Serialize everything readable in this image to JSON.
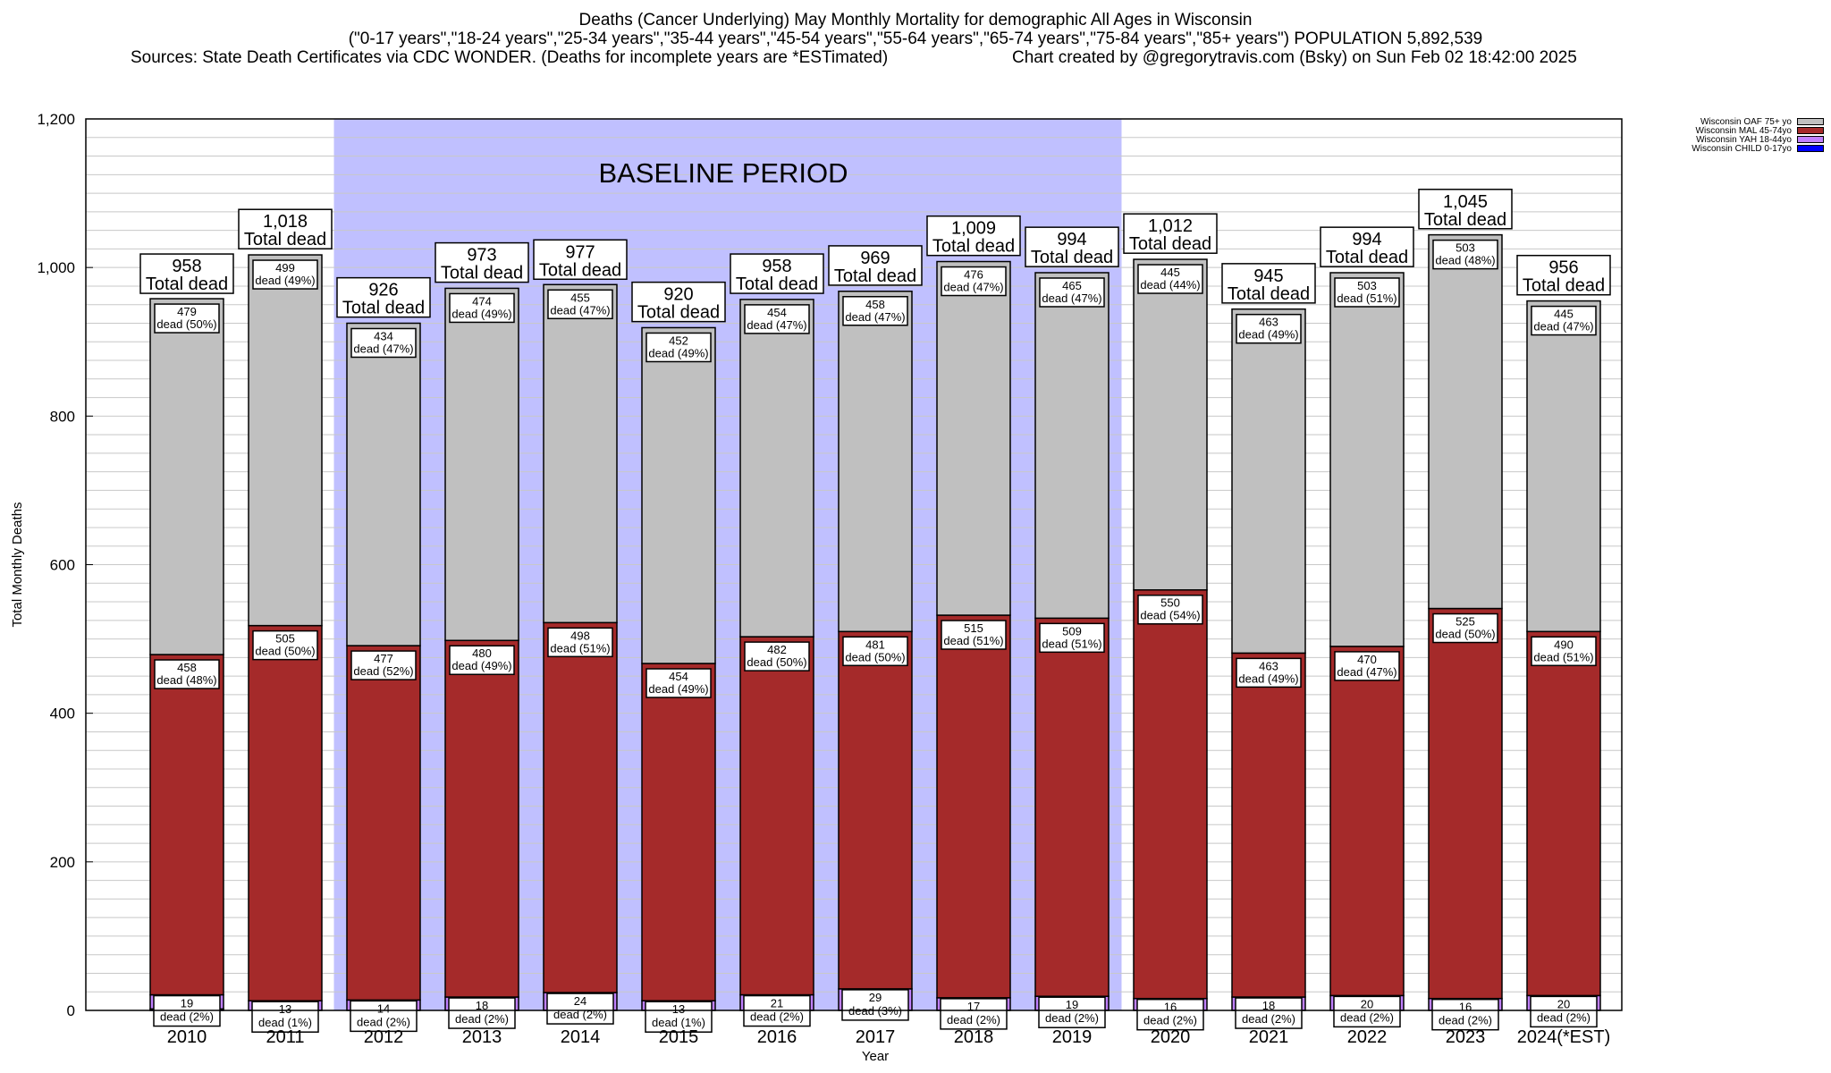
{
  "header": {
    "title": "Deaths (Cancer Underlying) May Monthly Mortality for demographic All Ages in Wisconsin",
    "subtitle": "(\"0-17 years\",\"18-24 years\",\"25-34 years\",\"35-44 years\",\"45-54 years\",\"55-64 years\",\"65-74 years\",\"75-84 years\",\"85+ years\") POPULATION 5,892,539",
    "sources": "Sources: State Death Certificates via CDC WONDER. (Deaths for incomplete years are *ESTimated)",
    "credit": "Chart created by @gregorytravis.com (Bsky) on Sun Feb 02 18:42:00 2025"
  },
  "legend": [
    {
      "label": "Wisconsin OAF 75+ yo",
      "color": "#c0c0c0"
    },
    {
      "label": "Wisconsin MAL 45-74yo",
      "color": "#a52a2a"
    },
    {
      "label": "Wisconsin YAH 18-44yo",
      "color": "#c080ff"
    },
    {
      "label": "Wisconsin CHILD 0-17yo",
      "color": "#0000ff"
    }
  ],
  "chart_data": {
    "type": "bar",
    "stacked": true,
    "title": "Deaths (Cancer Underlying) May Monthly Mortality for demographic All Ages in Wisconsin",
    "xlabel": "Year",
    "ylabel": "Total Monthly Deaths",
    "ylim": [
      0,
      1200
    ],
    "yticks": [
      0,
      200,
      400,
      600,
      800,
      1000,
      1200
    ],
    "ytick_labels": [
      "0",
      "200",
      "400",
      "600",
      "800",
      "1,000",
      "1,200"
    ],
    "grid": true,
    "legend_position": "top-right",
    "annotation": {
      "label": "BASELINE PERIOD",
      "from": "2012",
      "to": "2019",
      "color": "#c0c0ff"
    },
    "total_suffix": "Total dead",
    "categories": [
      "2010",
      "2011",
      "2012",
      "2013",
      "2014",
      "2015",
      "2016",
      "2017",
      "2018",
      "2019",
      "2020",
      "2021",
      "2022",
      "2023",
      "2024(*EST)"
    ],
    "totals": [
      958,
      1018,
      926,
      973,
      977,
      920,
      958,
      969,
      1009,
      994,
      1012,
      945,
      994,
      1045,
      956
    ],
    "total_labels": [
      "958",
      "1,018",
      "926",
      "973",
      "977",
      "920",
      "958",
      "969",
      "1,009",
      "994",
      "1,012",
      "945",
      "994",
      "1,045",
      "956"
    ],
    "series": [
      {
        "name": "Wisconsin CHILD 0-17yo",
        "color": "#0000ff",
        "values": [
          2,
          0,
          0,
          0,
          0,
          0,
          0,
          0,
          0,
          0,
          0,
          0,
          0,
          0,
          0
        ]
      },
      {
        "name": "Wisconsin YAH 18-44yo",
        "color": "#c080ff",
        "values": [
          19,
          13,
          14,
          18,
          24,
          13,
          21,
          29,
          17,
          19,
          16,
          18,
          20,
          16,
          20
        ],
        "labels": [
          "dead (2%)",
          "dead (1%)",
          "dead (2%)",
          "dead (2%)",
          "dead (2%)",
          "dead (1%)",
          "dead (2%)",
          "dead (3%)",
          "dead (2%)",
          "dead (2%)",
          "dead (2%)",
          "dead (2%)",
          "dead (2%)",
          "dead (2%)",
          "dead (2%)"
        ]
      },
      {
        "name": "Wisconsin MAL 45-74yo",
        "color": "#a52a2a",
        "values": [
          458,
          505,
          477,
          480,
          498,
          454,
          482,
          481,
          515,
          509,
          550,
          463,
          470,
          525,
          490
        ],
        "labels": [
          "dead (48%)",
          "dead (50%)",
          "dead (52%)",
          "dead (49%)",
          "dead (51%)",
          "dead (49%)",
          "dead (50%)",
          "dead (50%)",
          "dead (51%)",
          "dead (51%)",
          "dead (54%)",
          "dead (49%)",
          "dead (47%)",
          "dead (50%)",
          "dead (51%)"
        ]
      },
      {
        "name": "Wisconsin OAF 75+ yo",
        "color": "#c0c0c0",
        "values": [
          479,
          499,
          434,
          474,
          455,
          452,
          454,
          458,
          476,
          465,
          445,
          463,
          503,
          503,
          445
        ],
        "labels": [
          "dead (50%)",
          "dead (49%)",
          "dead (47%)",
          "dead (49%)",
          "dead (47%)",
          "dead (49%)",
          "dead (47%)",
          "dead (47%)",
          "dead (47%)",
          "dead (47%)",
          "dead (44%)",
          "dead (49%)",
          "dead (51%)",
          "dead (48%)",
          "dead (47%)"
        ]
      }
    ]
  }
}
